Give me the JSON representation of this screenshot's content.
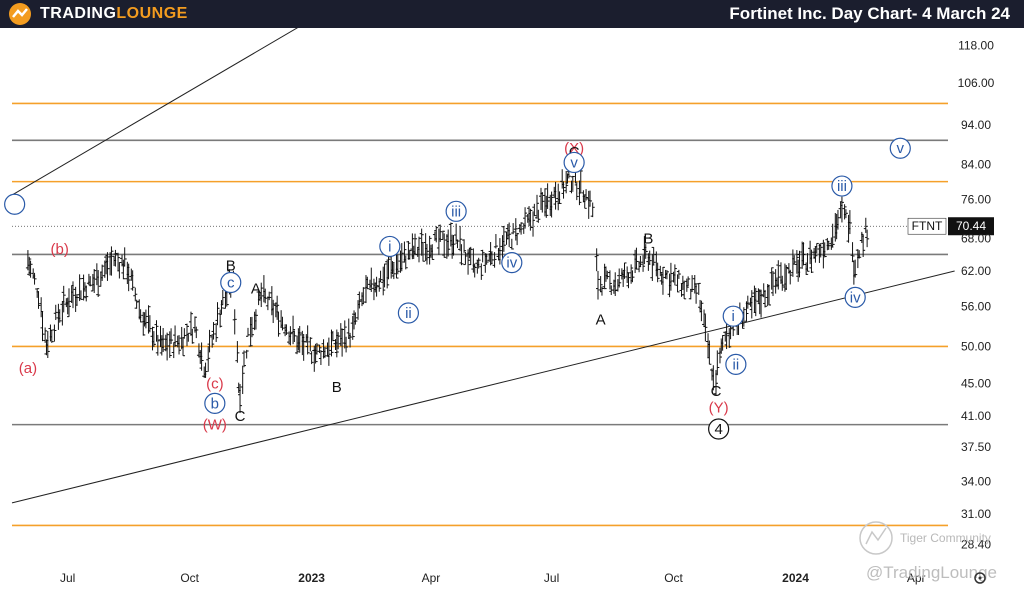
{
  "header": {
    "brand_part1": "TRADING",
    "brand_part2": "LOUNGE",
    "title": "Fortinet Inc. Day Chart- 4 March 24"
  },
  "watermarks": {
    "community": "Tiger Community",
    "copyright": "@TradingLounge"
  },
  "colors": {
    "orange": "#f5a02a",
    "gray": "#7a7a7a",
    "blue": "#2a5aa8",
    "red": "#d9394a",
    "black": "#111111"
  },
  "chart_data": {
    "type": "ohlc",
    "ticker": "FTNT",
    "last_price": "70.44",
    "y_scale": "log",
    "ylim": [
      27,
      130
    ],
    "y_ticks": [
      "118.00",
      "106.00",
      "94.00",
      "84.00",
      "76.00",
      "68.00",
      "62.00",
      "56.00",
      "50.00",
      "45.00",
      "41.00",
      "37.50",
      "34.00",
      "31.00",
      "28.40"
    ],
    "x_ticks": [
      "Jul",
      "Oct",
      "2023",
      "Apr",
      "Jul",
      "Oct",
      "2024",
      "Apr"
    ],
    "horizontal_levels": [
      {
        "price": 100,
        "color": "orange"
      },
      {
        "price": 90,
        "color": "gray"
      },
      {
        "price": 80,
        "color": "orange"
      },
      {
        "price": 65,
        "color": "gray"
      },
      {
        "price": 50,
        "color": "orange"
      },
      {
        "price": 40,
        "color": "gray"
      },
      {
        "price": 30,
        "color": "orange"
      }
    ],
    "price_path": [
      [
        "2022-06-01",
        64
      ],
      [
        "2022-06-10",
        58
      ],
      [
        "2022-06-15",
        50
      ],
      [
        "2022-06-25",
        55
      ],
      [
        "2022-07-05",
        58
      ],
      [
        "2022-07-20",
        60
      ],
      [
        "2022-08-05",
        64
      ],
      [
        "2022-08-15",
        63
      ],
      [
        "2022-08-25",
        55
      ],
      [
        "2022-09-10",
        50
      ],
      [
        "2022-09-25",
        51
      ],
      [
        "2022-10-05",
        53
      ],
      [
        "2022-10-13",
        47
      ],
      [
        "2022-10-25",
        56
      ],
      [
        "2022-11-03",
        60
      ],
      [
        "2022-11-08",
        43
      ],
      [
        "2022-11-15",
        52
      ],
      [
        "2022-11-25",
        58
      ],
      [
        "2022-12-10",
        54
      ],
      [
        "2022-12-20",
        51
      ],
      [
        "2023-01-05",
        49
      ],
      [
        "2023-01-15",
        50
      ],
      [
        "2023-02-01",
        52
      ],
      [
        "2023-02-10",
        58
      ],
      [
        "2023-03-01",
        62
      ],
      [
        "2023-03-15",
        65
      ],
      [
        "2023-04-01",
        67
      ],
      [
        "2023-04-20",
        68
      ],
      [
        "2023-05-05",
        62
      ],
      [
        "2023-05-25",
        67
      ],
      [
        "2023-06-10",
        70
      ],
      [
        "2023-06-25",
        75
      ],
      [
        "2023-07-10",
        79
      ],
      [
        "2023-07-18",
        81
      ],
      [
        "2023-07-25",
        78
      ],
      [
        "2023-08-01",
        75
      ],
      [
        "2023-08-05",
        60
      ],
      [
        "2023-08-20",
        60
      ],
      [
        "2023-09-05",
        63
      ],
      [
        "2023-09-12",
        65
      ],
      [
        "2023-09-20",
        62
      ],
      [
        "2023-10-05",
        60
      ],
      [
        "2023-10-20",
        58
      ],
      [
        "2023-11-01",
        45
      ],
      [
        "2023-11-10",
        52
      ],
      [
        "2023-11-20",
        54
      ],
      [
        "2023-12-05",
        57
      ],
      [
        "2023-12-20",
        61
      ],
      [
        "2024-01-10",
        64
      ],
      [
        "2024-01-25",
        67
      ],
      [
        "2024-02-05",
        73
      ],
      [
        "2024-02-09",
        72
      ],
      [
        "2024-02-12",
        70
      ],
      [
        "2024-02-15",
        62
      ],
      [
        "2024-02-18",
        66
      ],
      [
        "2024-02-23",
        69
      ],
      [
        "2024-02-26",
        70.44
      ]
    ],
    "channel_lines": [
      {
        "from": [
          "2022-05-20",
          77
        ],
        "to": [
          "2023-04-15",
          160
        ]
      },
      {
        "from": [
          "2022-05-20",
          32
        ],
        "to": [
          "2024-04-30",
          62
        ]
      }
    ],
    "wave_labels": [
      {
        "text": "(b)",
        "date": "2022-06-25",
        "price": 66,
        "color": "red"
      },
      {
        "text": "(a)",
        "date": "2022-06-01",
        "price": 47,
        "color": "red"
      },
      {
        "text": "(c)",
        "date": "2022-10-20",
        "price": 45,
        "color": "red"
      },
      {
        "text": "(W)",
        "date": "2022-10-20",
        "price": 40,
        "color": "red"
      },
      {
        "text": "(X)",
        "date": "2023-07-18",
        "price": 88,
        "color": "red"
      },
      {
        "text": "(Y)",
        "date": "2023-11-04",
        "price": 42,
        "color": "red"
      },
      {
        "text": "B",
        "date": "2022-11-01",
        "price": 63,
        "color": "black"
      },
      {
        "text": "A",
        "date": "2022-11-20",
        "price": 59,
        "color": "black"
      },
      {
        "text": "C",
        "date": "2022-11-08",
        "price": 41,
        "color": "black"
      },
      {
        "text": "B",
        "date": "2023-01-20",
        "price": 44.5,
        "color": "black"
      },
      {
        "text": "C",
        "date": "2023-07-18",
        "price": 87,
        "color": "black"
      },
      {
        "text": "B",
        "date": "2023-09-12",
        "price": 68,
        "color": "black"
      },
      {
        "text": "A",
        "date": "2023-08-07",
        "price": 54,
        "color": "black"
      },
      {
        "text": "C",
        "date": "2023-11-02",
        "price": 44,
        "color": "black"
      },
      {
        "text": "c",
        "date": "2022-11-01",
        "price": 60,
        "color": "blue",
        "circle": true
      },
      {
        "text": "b",
        "date": "2022-10-20",
        "price": 42.5,
        "color": "blue",
        "circle": true
      },
      {
        "text": "i",
        "date": "2023-03-01",
        "price": 66.5,
        "color": "blue",
        "circle": true
      },
      {
        "text": "ii",
        "date": "2023-03-15",
        "price": 55,
        "color": "blue",
        "circle": true
      },
      {
        "text": "iii",
        "date": "2023-04-20",
        "price": 73.5,
        "color": "blue",
        "circle": true
      },
      {
        "text": "iv",
        "date": "2023-06-01",
        "price": 63.5,
        "color": "blue",
        "circle": true
      },
      {
        "text": "v",
        "date": "2023-07-18",
        "price": 84.5,
        "color": "blue",
        "circle": true
      },
      {
        "text": "i",
        "date": "2023-11-15",
        "price": 54.5,
        "color": "blue",
        "circle": true
      },
      {
        "text": "ii",
        "date": "2023-11-17",
        "price": 47.5,
        "color": "blue",
        "circle": true
      },
      {
        "text": "iii",
        "date": "2024-02-05",
        "price": 79,
        "color": "blue",
        "circle": true
      },
      {
        "text": "iv",
        "date": "2024-02-15",
        "price": 57.5,
        "color": "blue",
        "circle": true
      },
      {
        "text": "v",
        "date": "2024-03-20",
        "price": 88,
        "color": "blue",
        "circle": true
      },
      {
        "text": "",
        "date": "2022-05-22",
        "price": 75,
        "color": "blue",
        "circle": true
      },
      {
        "text": "4",
        "date": "2023-11-04",
        "price": 39.5,
        "color": "black",
        "circle": true
      }
    ]
  }
}
